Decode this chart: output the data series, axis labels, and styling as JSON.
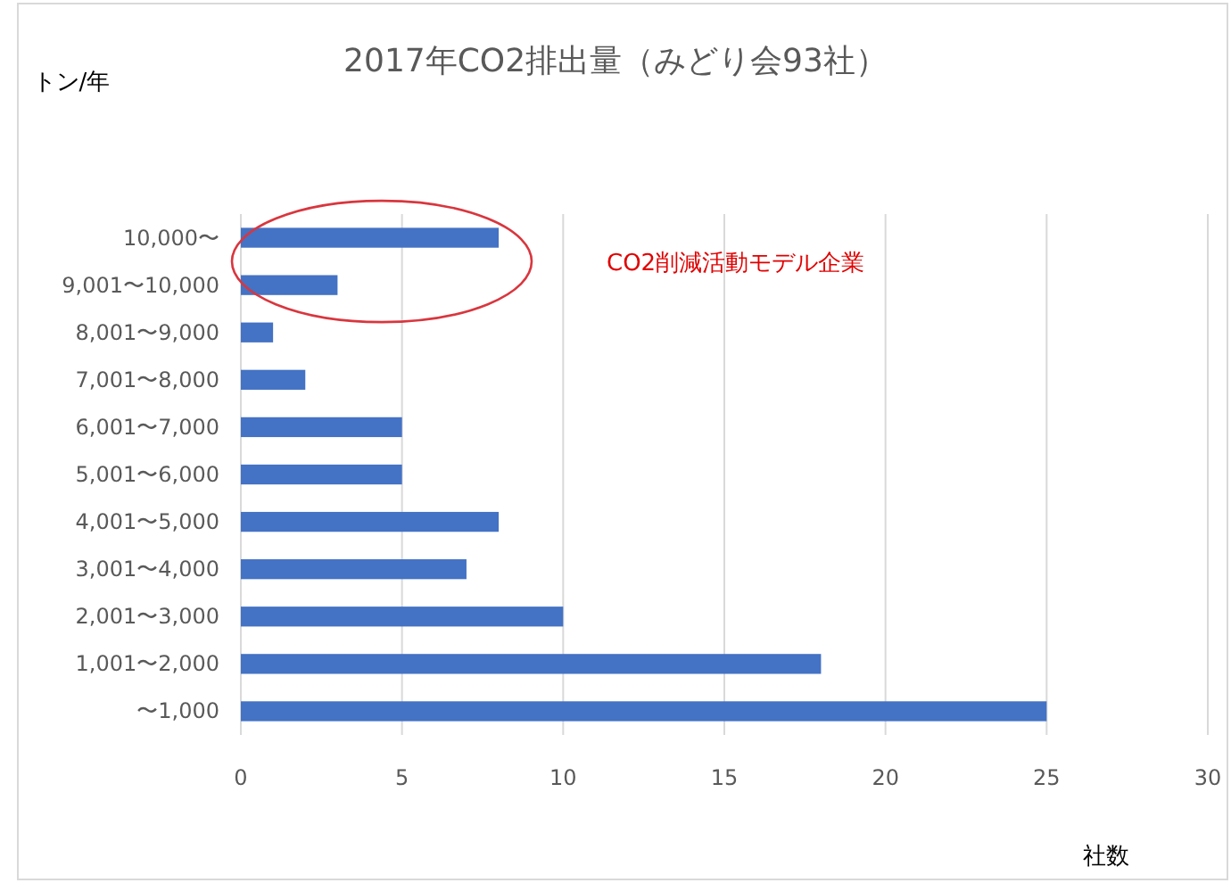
{
  "chart_data": {
    "type": "bar",
    "orientation": "horizontal",
    "title": "2017年CO2排出量（みどり会93社）",
    "xlabel": "社数",
    "categories": [
      "10,000〜",
      "9,001〜10,000",
      "8,001〜9,000",
      "7,001〜8,000",
      "6,001〜7,000",
      "5,001〜6,000",
      "4,001〜5,000",
      "3,001〜4,000",
      "2,001〜3,000",
      "1,001〜2,000",
      "〜1,000"
    ],
    "values": [
      8,
      3,
      1,
      2,
      5,
      5,
      8,
      7,
      10,
      18,
      25
    ],
    "color": "#4472c4",
    "xlim": [
      0,
      30
    ],
    "xticks": [
      0,
      5,
      10,
      15,
      20,
      25,
      30
    ],
    "grid": "x",
    "annotations": [
      "CO2削減活動モデル企業",
      "トン/年"
    ]
  }
}
